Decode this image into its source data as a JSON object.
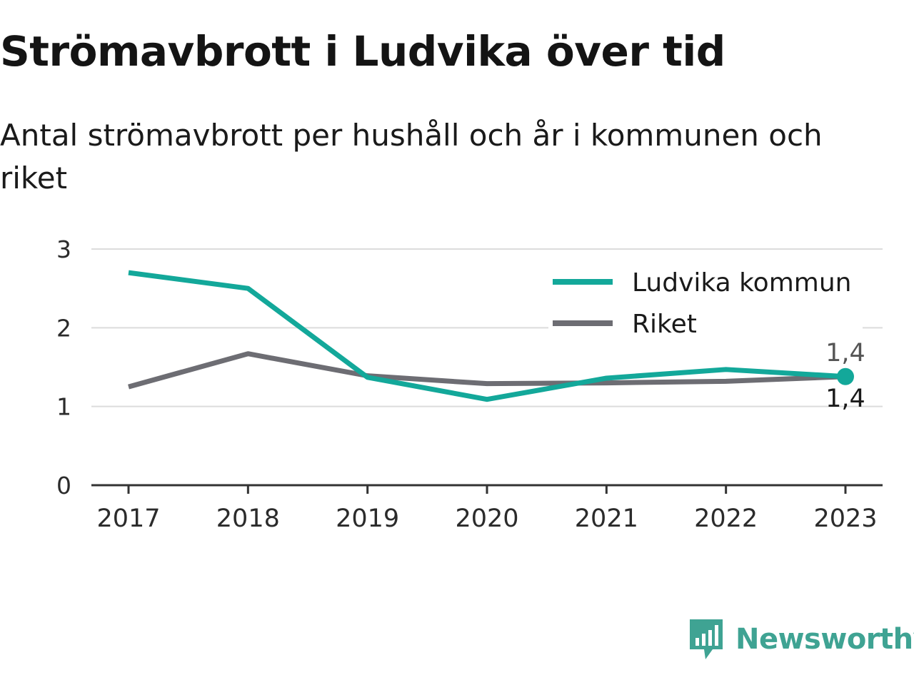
{
  "title": "Strömavbrott i Ludvika över tid",
  "subtitle": "Antal strömavbrott per hushåll och år i kommunen och riket",
  "brand": {
    "name": "Newsworthy",
    "icon": "newsworthy-logo-icon",
    "color": "#3fa393"
  },
  "chart_data": {
    "type": "line",
    "categories": [
      "2017",
      "2018",
      "2019",
      "2020",
      "2021",
      "2022",
      "2023"
    ],
    "series": [
      {
        "name": "Ludvika kommun",
        "color": "#13a89a",
        "values": [
          2.7,
          2.5,
          1.37,
          1.09,
          1.36,
          1.47,
          1.38
        ]
      },
      {
        "name": "Riket",
        "color": "#6d6d73",
        "values": [
          1.25,
          1.67,
          1.39,
          1.29,
          1.3,
          1.32,
          1.38
        ]
      }
    ],
    "y_ticks": [
      "0",
      "1",
      "2",
      "3"
    ],
    "ylim": [
      0,
      3
    ],
    "end_labels": [
      "1,4",
      "1,4"
    ],
    "legend_position": "top-right",
    "grid": true
  }
}
